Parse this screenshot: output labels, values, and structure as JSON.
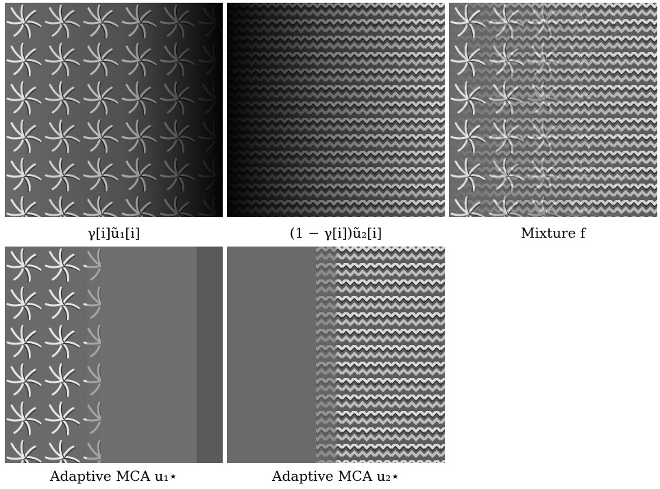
{
  "figure": {
    "panels": [
      {
        "name": "gamma-u1",
        "caption": "γ[i]ũ₁[i]",
        "texture": "flower",
        "gradient": "bright-left"
      },
      {
        "name": "one-minus-gamma-u2",
        "caption": "(1 − γ[i])ũ₂[i]",
        "texture": "weave",
        "gradient": "bright-right"
      },
      {
        "name": "mixture",
        "caption": "Mixture f",
        "texture": "mixed",
        "gradient": "flat"
      },
      {
        "name": "adaptive-mca-u1",
        "caption": "Adaptive MCA u₁⋆",
        "texture": "flower-left",
        "gradient": "gray"
      },
      {
        "name": "adaptive-mca-u2",
        "caption": "Adaptive MCA u₂⋆",
        "texture": "weave-right",
        "gradient": "gray"
      }
    ]
  }
}
